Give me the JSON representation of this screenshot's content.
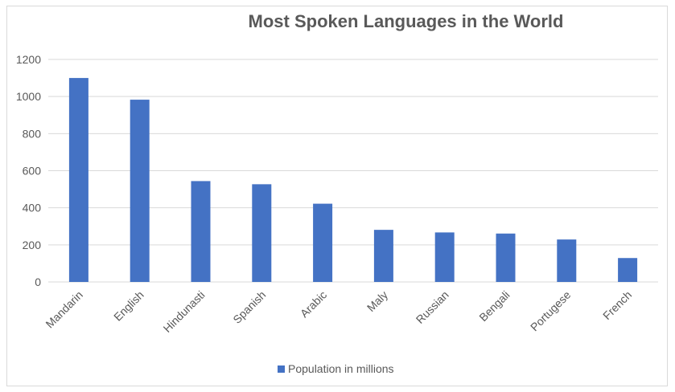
{
  "chart_data": {
    "type": "bar",
    "title": "Most Spoken Languages in the World",
    "xlabel": "",
    "ylabel": "",
    "categories": [
      "Mandarin",
      "English",
      "Hindunasti",
      "Spanish",
      "Arabic",
      "Maly",
      "Russian",
      "Bengali",
      "Portugese",
      "French"
    ],
    "series": [
      {
        "name": "Population in millions",
        "values": [
          1100,
          983,
          544,
          527,
          422,
          281,
          267,
          261,
          229,
          129
        ]
      }
    ],
    "ylim": [
      0,
      1200
    ],
    "yticks": [
      "0",
      "200",
      "400",
      "600",
      "800",
      "1000",
      "1200"
    ],
    "grid": true,
    "legend": "bottom",
    "colors": {
      "bar": "#4472C4",
      "grid": "#d9d9d9",
      "text": "#595959"
    }
  }
}
